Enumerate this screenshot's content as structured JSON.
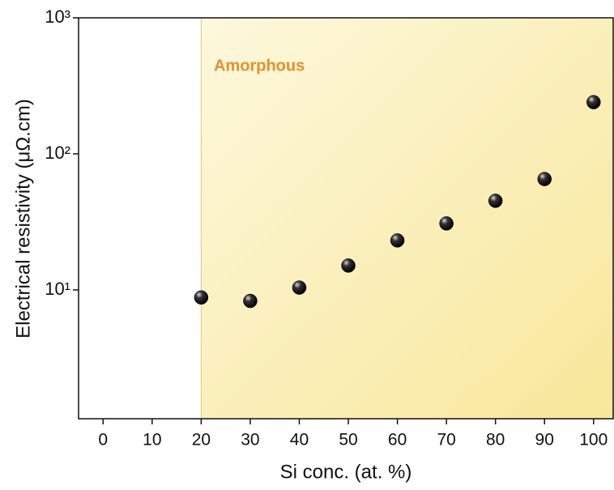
{
  "chart_data": {
    "type": "scatter",
    "log_y": true,
    "x_label": "Si conc. (at. %)",
    "y_label": "Electrical resistivity (μΩ.cm)",
    "annotation": "Amorphous",
    "shade_from": 20,
    "x": [
      20,
      30,
      40,
      50,
      60,
      70,
      80,
      90,
      100
    ],
    "values": [
      8.8,
      8.3,
      10.4,
      15.1,
      23.1,
      30.8,
      45.2,
      65.3,
      240
    ],
    "color": "#000000",
    "xlim": [
      -5,
      104
    ],
    "xticks": [
      0,
      10,
      20,
      30,
      40,
      50,
      60,
      70,
      80,
      90,
      100
    ],
    "ylim": [
      1.13,
      1000
    ],
    "yticks": [
      {
        "value": 10,
        "label": "10¹"
      },
      {
        "value": 100,
        "label": "10²"
      },
      {
        "value": 1000,
        "label": "10³"
      }
    ]
  }
}
